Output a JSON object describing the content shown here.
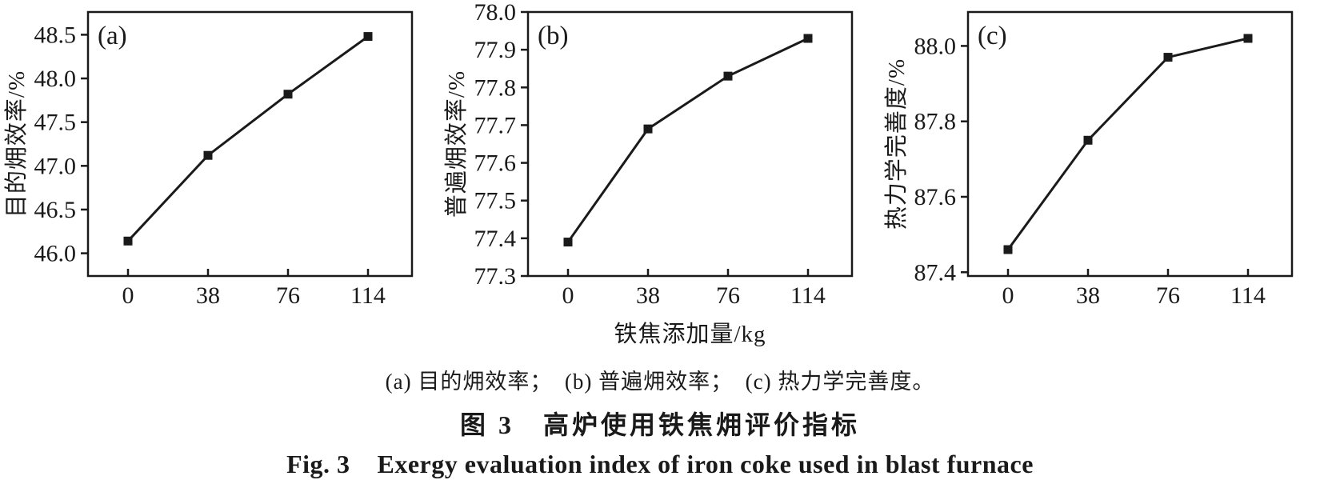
{
  "figure": {
    "ink_color": "#1a1a1a",
    "background_color": "#ffffff",
    "panel_caption": "(a) 目的㶲效率；  (b) 普遍㶲效率；  (c) 热力学完善度。",
    "caption_zh": "图 3   高炉使用铁焦㶲评价指标",
    "caption_en": "Fig. 3    Exergy evaluation index of iron coke used in blast furnace"
  },
  "chart_data": [
    {
      "type": "line",
      "panel_label": "(a)",
      "x": [
        0,
        38,
        76,
        114
      ],
      "xticklabels": [
        "0",
        "38",
        "76",
        "114"
      ],
      "values": [
        46.14,
        47.12,
        47.82,
        48.48
      ],
      "xlabel": "",
      "ylabel": "目的㶲效率/%",
      "ylim": [
        45.74,
        48.76
      ],
      "ytick_values": [
        46.0,
        46.5,
        47.0,
        47.5,
        48.0,
        48.5
      ],
      "ytick_labels": [
        "46.0",
        "46.5",
        "47.0",
        "47.5",
        "48.0",
        "48.5"
      ],
      "marker": "square",
      "grid": false,
      "legend": null
    },
    {
      "type": "line",
      "panel_label": "(b)",
      "x": [
        0,
        38,
        76,
        114
      ],
      "xticklabels": [
        "0",
        "38",
        "76",
        "114"
      ],
      "values": [
        77.39,
        77.69,
        77.83,
        77.93
      ],
      "xlabel": "铁焦添加量/kg",
      "ylabel": "普遍㶲效率/%",
      "ylim": [
        77.3,
        78.0
      ],
      "ytick_values": [
        77.3,
        77.4,
        77.5,
        77.6,
        77.7,
        77.8,
        77.9,
        78.0
      ],
      "ytick_labels": [
        "77.3",
        "77.4",
        "77.5",
        "77.6",
        "77.7",
        "77.8",
        "77.9",
        "78.0"
      ],
      "marker": "square",
      "grid": false,
      "legend": null
    },
    {
      "type": "line",
      "panel_label": "(c)",
      "x": [
        0,
        38,
        76,
        114
      ],
      "xticklabels": [
        "0",
        "38",
        "76",
        "114"
      ],
      "values": [
        87.46,
        87.75,
        87.97,
        88.02
      ],
      "xlabel": "",
      "ylabel": "热力学完善度/%",
      "ylim": [
        87.39,
        88.09
      ],
      "ytick_values": [
        87.4,
        87.6,
        87.8,
        88.0
      ],
      "ytick_labels": [
        "87.4",
        "87.6",
        "87.8",
        "88.0"
      ],
      "marker": "square",
      "grid": false,
      "legend": null
    }
  ]
}
